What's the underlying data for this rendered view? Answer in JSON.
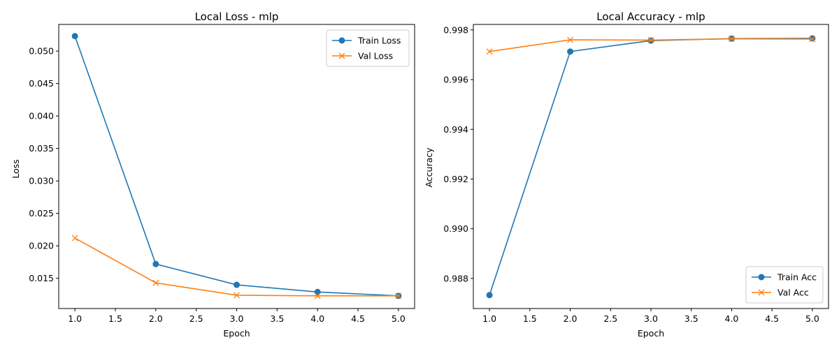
{
  "chart_data": [
    {
      "type": "line",
      "title": "Local Loss - mlp",
      "xlabel": "Epoch",
      "ylabel": "Loss",
      "x": [
        1,
        2,
        3,
        4,
        5
      ],
      "xlim": [
        0.8,
        5.2
      ],
      "ylim": [
        0.01035,
        0.0541
      ],
      "xticks": [
        1.0,
        1.5,
        2.0,
        2.5,
        3.0,
        3.5,
        4.0,
        4.5,
        5.0
      ],
      "xtick_labels": [
        "1.0",
        "1.5",
        "2.0",
        "2.5",
        "3.0",
        "3.5",
        "4.0",
        "4.5",
        "5.0"
      ],
      "yticks": [
        0.015,
        0.02,
        0.025,
        0.03,
        0.035,
        0.04,
        0.045,
        0.05
      ],
      "ytick_labels": [
        "0.015",
        "0.020",
        "0.025",
        "0.030",
        "0.035",
        "0.040",
        "0.045",
        "0.050"
      ],
      "legend_position": "upper-right",
      "series": [
        {
          "name": "Train Loss",
          "color": "#1f77b4",
          "marker": "circle",
          "values": [
            0.0523,
            0.0172,
            0.014,
            0.0129,
            0.0123
          ]
        },
        {
          "name": "Val Loss",
          "color": "#ff7f0e",
          "marker": "x",
          "values": [
            0.0212,
            0.0143,
            0.0124,
            0.0123,
            0.0123
          ]
        }
      ]
    },
    {
      "type": "line",
      "title": "Local Accuracy - mlp",
      "xlabel": "Epoch",
      "ylabel": "Accuracy",
      "x": [
        1,
        2,
        3,
        4,
        5
      ],
      "xlim": [
        0.8,
        5.2
      ],
      "ylim": [
        0.98679,
        0.99822
      ],
      "xticks": [
        1.0,
        1.5,
        2.0,
        2.5,
        3.0,
        3.5,
        4.0,
        4.5,
        5.0
      ],
      "xtick_labels": [
        "1.0",
        "1.5",
        "2.0",
        "2.5",
        "3.0",
        "3.5",
        "4.0",
        "4.5",
        "5.0"
      ],
      "yticks": [
        0.988,
        0.99,
        0.992,
        0.994,
        0.996,
        0.998
      ],
      "ytick_labels": [
        "0.988",
        "0.990",
        "0.992",
        "0.994",
        "0.996",
        "0.998"
      ],
      "legend_position": "lower-right",
      "series": [
        {
          "name": "Train Acc",
          "color": "#1f77b4",
          "marker": "circle",
          "values": [
            0.98733,
            0.99713,
            0.99757,
            0.99765,
            0.99766
          ]
        },
        {
          "name": "Val Acc",
          "color": "#ff7f0e",
          "marker": "x",
          "values": [
            0.99713,
            0.9976,
            0.99759,
            0.99764,
            0.99763
          ]
        }
      ]
    }
  ]
}
